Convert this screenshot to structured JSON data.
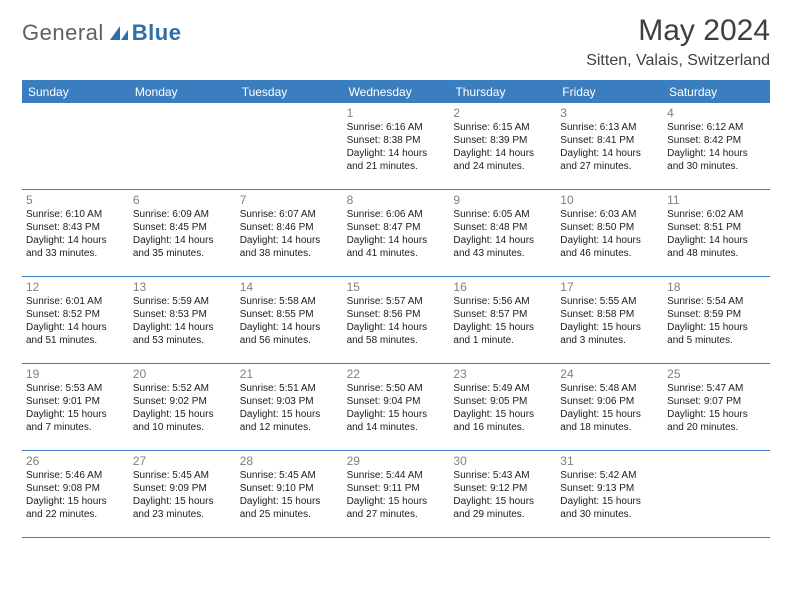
{
  "logo": {
    "general": "General",
    "blue": "Blue"
  },
  "title": "May 2024",
  "location": "Sitten, Valais, Switzerland",
  "colors": {
    "header_bg": "#3a7ebf",
    "header_text": "#ffffff",
    "body_bg": "#ffffff",
    "daynum_color": "#808080",
    "text_color": "#202020",
    "logo_blue": "#2f6fa8",
    "logo_gray": "#606060"
  },
  "dow": [
    "Sunday",
    "Monday",
    "Tuesday",
    "Wednesday",
    "Thursday",
    "Friday",
    "Saturday"
  ],
  "weeks": [
    [
      null,
      null,
      null,
      {
        "n": "1",
        "sr": "6:16 AM",
        "ss": "8:38 PM",
        "dl": "14 hours and 21 minutes."
      },
      {
        "n": "2",
        "sr": "6:15 AM",
        "ss": "8:39 PM",
        "dl": "14 hours and 24 minutes."
      },
      {
        "n": "3",
        "sr": "6:13 AM",
        "ss": "8:41 PM",
        "dl": "14 hours and 27 minutes."
      },
      {
        "n": "4",
        "sr": "6:12 AM",
        "ss": "8:42 PM",
        "dl": "14 hours and 30 minutes."
      }
    ],
    [
      {
        "n": "5",
        "sr": "6:10 AM",
        "ss": "8:43 PM",
        "dl": "14 hours and 33 minutes."
      },
      {
        "n": "6",
        "sr": "6:09 AM",
        "ss": "8:45 PM",
        "dl": "14 hours and 35 minutes."
      },
      {
        "n": "7",
        "sr": "6:07 AM",
        "ss": "8:46 PM",
        "dl": "14 hours and 38 minutes."
      },
      {
        "n": "8",
        "sr": "6:06 AM",
        "ss": "8:47 PM",
        "dl": "14 hours and 41 minutes."
      },
      {
        "n": "9",
        "sr": "6:05 AM",
        "ss": "8:48 PM",
        "dl": "14 hours and 43 minutes."
      },
      {
        "n": "10",
        "sr": "6:03 AM",
        "ss": "8:50 PM",
        "dl": "14 hours and 46 minutes."
      },
      {
        "n": "11",
        "sr": "6:02 AM",
        "ss": "8:51 PM",
        "dl": "14 hours and 48 minutes."
      }
    ],
    [
      {
        "n": "12",
        "sr": "6:01 AM",
        "ss": "8:52 PM",
        "dl": "14 hours and 51 minutes."
      },
      {
        "n": "13",
        "sr": "5:59 AM",
        "ss": "8:53 PM",
        "dl": "14 hours and 53 minutes."
      },
      {
        "n": "14",
        "sr": "5:58 AM",
        "ss": "8:55 PM",
        "dl": "14 hours and 56 minutes."
      },
      {
        "n": "15",
        "sr": "5:57 AM",
        "ss": "8:56 PM",
        "dl": "14 hours and 58 minutes."
      },
      {
        "n": "16",
        "sr": "5:56 AM",
        "ss": "8:57 PM",
        "dl": "15 hours and 1 minute."
      },
      {
        "n": "17",
        "sr": "5:55 AM",
        "ss": "8:58 PM",
        "dl": "15 hours and 3 minutes."
      },
      {
        "n": "18",
        "sr": "5:54 AM",
        "ss": "8:59 PM",
        "dl": "15 hours and 5 minutes."
      }
    ],
    [
      {
        "n": "19",
        "sr": "5:53 AM",
        "ss": "9:01 PM",
        "dl": "15 hours and 7 minutes."
      },
      {
        "n": "20",
        "sr": "5:52 AM",
        "ss": "9:02 PM",
        "dl": "15 hours and 10 minutes."
      },
      {
        "n": "21",
        "sr": "5:51 AM",
        "ss": "9:03 PM",
        "dl": "15 hours and 12 minutes."
      },
      {
        "n": "22",
        "sr": "5:50 AM",
        "ss": "9:04 PM",
        "dl": "15 hours and 14 minutes."
      },
      {
        "n": "23",
        "sr": "5:49 AM",
        "ss": "9:05 PM",
        "dl": "15 hours and 16 minutes."
      },
      {
        "n": "24",
        "sr": "5:48 AM",
        "ss": "9:06 PM",
        "dl": "15 hours and 18 minutes."
      },
      {
        "n": "25",
        "sr": "5:47 AM",
        "ss": "9:07 PM",
        "dl": "15 hours and 20 minutes."
      }
    ],
    [
      {
        "n": "26",
        "sr": "5:46 AM",
        "ss": "9:08 PM",
        "dl": "15 hours and 22 minutes."
      },
      {
        "n": "27",
        "sr": "5:45 AM",
        "ss": "9:09 PM",
        "dl": "15 hours and 23 minutes."
      },
      {
        "n": "28",
        "sr": "5:45 AM",
        "ss": "9:10 PM",
        "dl": "15 hours and 25 minutes."
      },
      {
        "n": "29",
        "sr": "5:44 AM",
        "ss": "9:11 PM",
        "dl": "15 hours and 27 minutes."
      },
      {
        "n": "30",
        "sr": "5:43 AM",
        "ss": "9:12 PM",
        "dl": "15 hours and 29 minutes."
      },
      {
        "n": "31",
        "sr": "5:42 AM",
        "ss": "9:13 PM",
        "dl": "15 hours and 30 minutes."
      },
      null
    ]
  ],
  "labels": {
    "sunrise": "Sunrise:",
    "sunset": "Sunset:",
    "daylight": "Daylight:"
  }
}
